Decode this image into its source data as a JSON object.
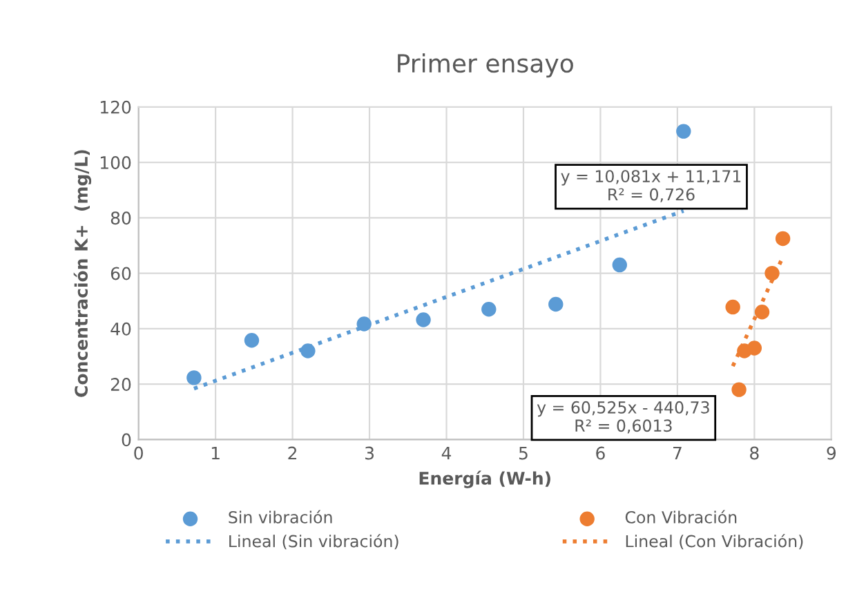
{
  "chart_data": {
    "type": "scatter",
    "title": "Primer ensayo",
    "xlabel": "Energía (W-h)",
    "ylabel": "Concentración K+  (mg/L)",
    "xlim": [
      0,
      9
    ],
    "xticks": [
      0,
      1,
      2,
      3,
      4,
      5,
      6,
      7,
      8,
      9
    ],
    "ylim": [
      0,
      120
    ],
    "yticks": [
      0,
      20,
      40,
      60,
      80,
      100,
      120
    ],
    "grid": true,
    "legend": "bottom",
    "series": [
      {
        "name": "Sin vibración",
        "marker": "circle",
        "color": "#5b9bd5",
        "x": [
          0.72,
          1.47,
          2.2,
          2.93,
          3.7,
          4.55,
          5.42,
          6.25,
          7.08
        ],
        "values": [
          22.3,
          35.8,
          32,
          41.7,
          43.2,
          47,
          48.8,
          63,
          111.2
        ]
      },
      {
        "name": "Con Vibración",
        "marker": "circle",
        "color": "#ed7d31",
        "x": [
          7.72,
          7.8,
          7.87,
          8.0,
          8.1,
          8.23,
          8.37
        ],
        "values": [
          47.8,
          18,
          32,
          33,
          46,
          60,
          72.5
        ]
      },
      {
        "name": "Lineal (Sin vibración)",
        "type": "line",
        "line_style": "dotted",
        "marker": "none",
        "color": "#5b9bd5",
        "x": [
          0.72,
          7.08
        ],
        "values": [
          18.4,
          82.5
        ]
      },
      {
        "name": "Lineal (Con Vibración)",
        "type": "line",
        "line_style": "dotted",
        "marker": "none",
        "color": "#ed7d31",
        "x": [
          7.72,
          8.37
        ],
        "values": [
          26.5,
          65.9
        ]
      }
    ],
    "annotations": [
      "y = 10,081x + 11,171\nR² = 0,726",
      "y = 60,525x - 440,73\nR² = 0,6013"
    ]
  }
}
